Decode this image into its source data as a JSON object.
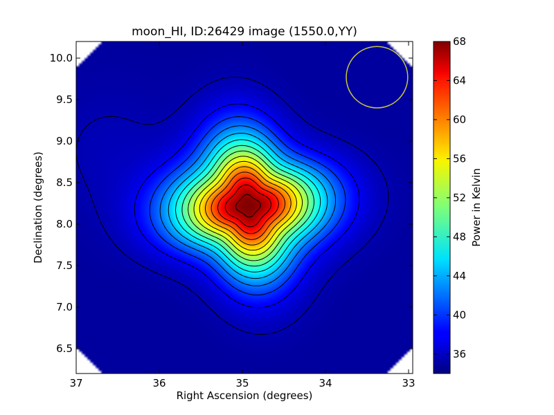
{
  "chart_data": {
    "type": "heatmap",
    "title": "moon_HI, ID:26429 image (1550.0,YY)",
    "xlabel": "Right Ascension (degrees)",
    "ylabel": "Declination (degrees)",
    "xlim": [
      37.0,
      32.95
    ],
    "ylim": [
      6.2,
      10.2
    ],
    "x_ticks": [
      37,
      36,
      35,
      34,
      33
    ],
    "x_tick_labels": [
      "37",
      "36",
      "35",
      "34",
      "33"
    ],
    "y_ticks": [
      6.5,
      7.0,
      7.5,
      8.0,
      8.5,
      9.0,
      9.5,
      10.0
    ],
    "y_tick_labels": [
      "6.5",
      "7.0",
      "7.5",
      "8.0",
      "8.5",
      "9.0",
      "9.5",
      "10.0"
    ],
    "colormap": "jet",
    "colorbar": {
      "label": "Power in Kelvin",
      "range": [
        34,
        68
      ],
      "ticks": [
        36,
        40,
        44,
        48,
        52,
        56,
        60,
        64,
        68
      ],
      "tick_labels": [
        "36",
        "40",
        "44",
        "48",
        "52",
        "56",
        "60",
        "64",
        "68"
      ]
    },
    "peak": {
      "ra": 34.93,
      "dec": 8.22,
      "value": 68
    },
    "background_level": 35,
    "contour_count": 15,
    "beam_circle": {
      "ra": 33.38,
      "dec": 9.77,
      "radius_deg": 0.37,
      "color": "#c8c83c"
    },
    "grid": false
  }
}
